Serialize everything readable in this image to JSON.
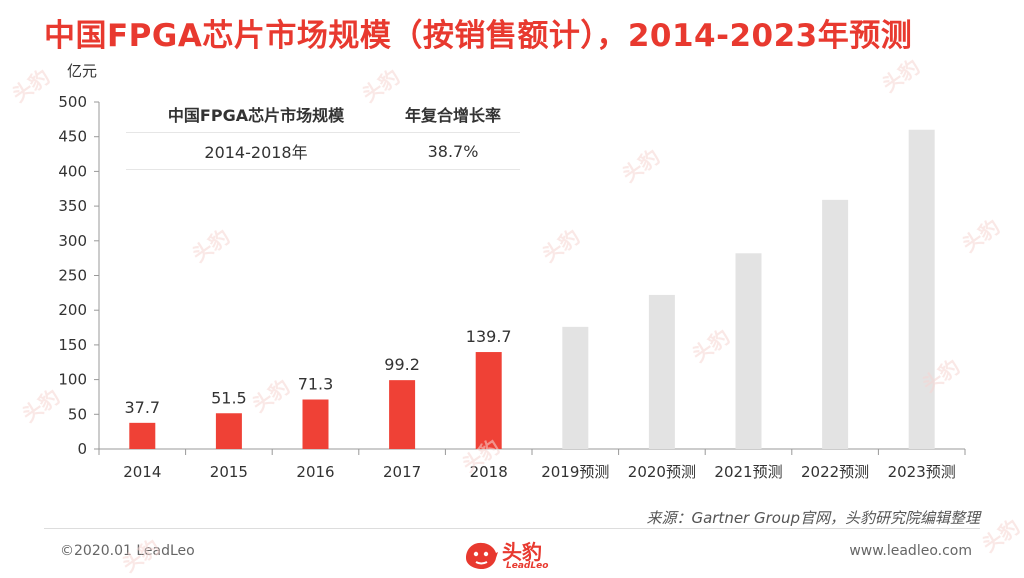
{
  "title": "中国FPGA芯片市场规模（按销售额计），2014-2023年预测",
  "unit": "亿元",
  "growth_table": {
    "headers": [
      "中国FPGA芯片市场规模",
      "年复合增长率"
    ],
    "rows": [
      [
        "2014-2018年",
        "38.7%"
      ]
    ]
  },
  "source": "来源：Gartner Group官网，头豹研究院编辑整理",
  "footer": {
    "copyright": "©2020.01 LeadLeo",
    "website": "www.leadleo.com",
    "logo_text": "头豹",
    "logo_sub": "LeadLeo"
  },
  "watermark_text": "头豹",
  "colors": {
    "actual": "#ef4136",
    "forecast": "#e3e3e3",
    "title": "#e8392f"
  },
  "chart_data": {
    "type": "bar",
    "categories": [
      "2014",
      "2015",
      "2016",
      "2017",
      "2018",
      "2019预测",
      "2020预测",
      "2021预测",
      "2022预测",
      "2023预测"
    ],
    "values": [
      37.7,
      51.5,
      71.3,
      99.2,
      139.7,
      176,
      222,
      282,
      359,
      460
    ],
    "value_labels": [
      "37.7",
      "51.5",
      "71.3",
      "99.2",
      "139.7",
      null,
      null,
      null,
      null,
      null
    ],
    "forecast": [
      false,
      false,
      false,
      false,
      false,
      true,
      true,
      true,
      true,
      true
    ],
    "yticks": [
      0,
      50,
      100,
      150,
      200,
      250,
      300,
      350,
      400,
      450,
      500
    ],
    "ylim": [
      0,
      500
    ],
    "ylabel": "亿元",
    "grid": false,
    "legend": "none"
  }
}
